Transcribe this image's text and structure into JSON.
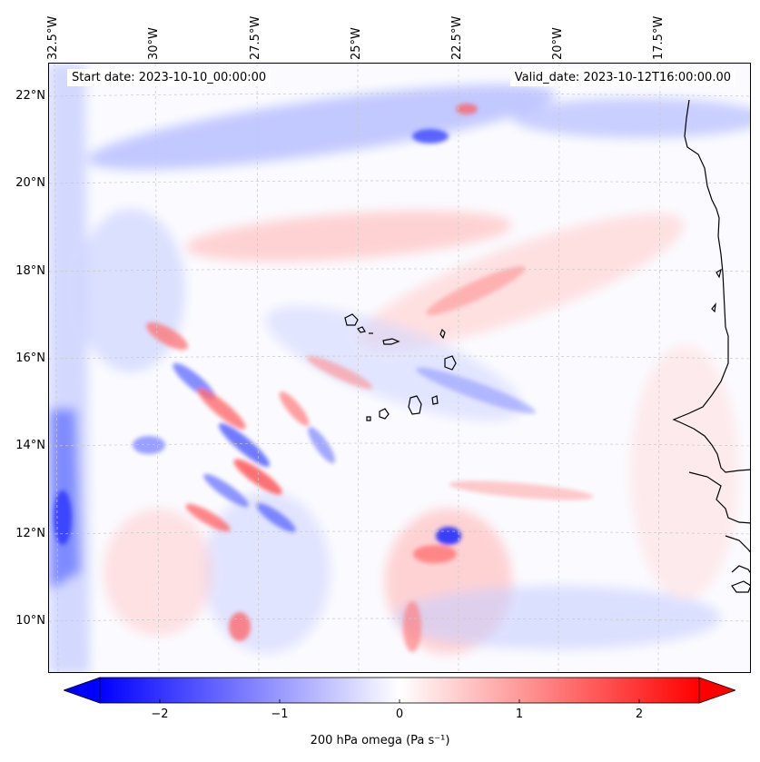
{
  "map": {
    "start_date": "Start date: 2023-10-10_00:00:00",
    "valid_date": "Valid_date: 2023-10-12T16:00:00.00",
    "longitude_labels": [
      "32.5°W",
      "30°W",
      "27.5°W",
      "25°W",
      "22.5°W",
      "20°W",
      "17.5°W"
    ],
    "latitude_labels": [
      "22°N",
      "20°N",
      "18°N",
      "16°N",
      "14°N",
      "12°N",
      "10°N"
    ],
    "lon_range": [
      -32.8,
      -15.3
    ],
    "lat_range": [
      8.9,
      22.8
    ],
    "colors": {
      "negative": "#0000ff",
      "neutral": "#ffffff",
      "positive": "#ff0000",
      "coastline": "#000000",
      "grid": "#c8c8c8"
    }
  },
  "colorbar": {
    "title": "200 hPa omega (Pa s⁻¹)",
    "tick_labels": [
      "−2",
      "−1",
      "0",
      "1",
      "2"
    ],
    "tick_values": [
      -2,
      -1,
      0,
      1,
      2
    ],
    "range": [
      -2.5,
      2.5
    ]
  }
}
